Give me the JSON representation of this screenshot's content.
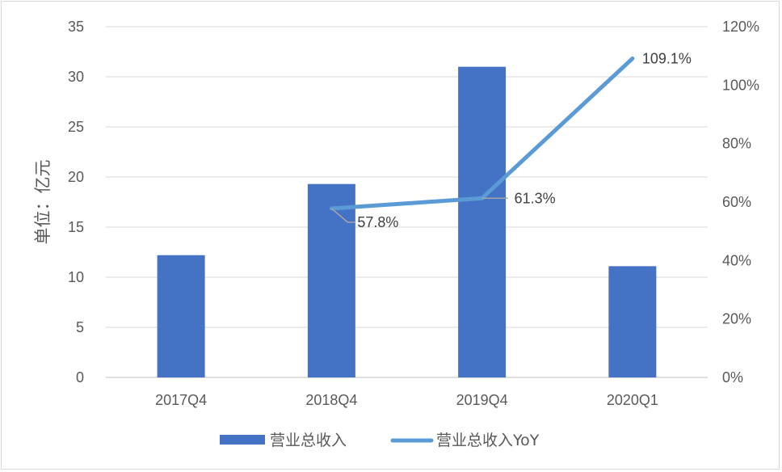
{
  "chart_data": {
    "type": "bar",
    "categories": [
      "2017Q4",
      "2018Q4",
      "2019Q4",
      "2020Q1"
    ],
    "series": [
      {
        "name": "营业总收入",
        "type": "bar",
        "axis": "left",
        "values": [
          12.2,
          19.3,
          31.0,
          11.1
        ],
        "color": "#4472c4"
      },
      {
        "name": "营业总收入YoY",
        "type": "line",
        "axis": "right",
        "values": [
          null,
          57.8,
          61.3,
          109.1
        ],
        "color": "#5b9bd5"
      }
    ],
    "data_labels": [
      "57.8%",
      "61.3%",
      "109.1%"
    ],
    "ylabel": "单位：亿元",
    "ylim": [
      0,
      35
    ],
    "yticks": [
      "0",
      "5",
      "10",
      "15",
      "20",
      "25",
      "30",
      "35"
    ],
    "y2lim": [
      0,
      120
    ],
    "y2ticks": [
      "0%",
      "20%",
      "40%",
      "60%",
      "80%",
      "100%",
      "120%"
    ],
    "grid": true,
    "legend_position": "bottom",
    "legend": [
      "营业总收入",
      "营业总收入YoY"
    ]
  }
}
